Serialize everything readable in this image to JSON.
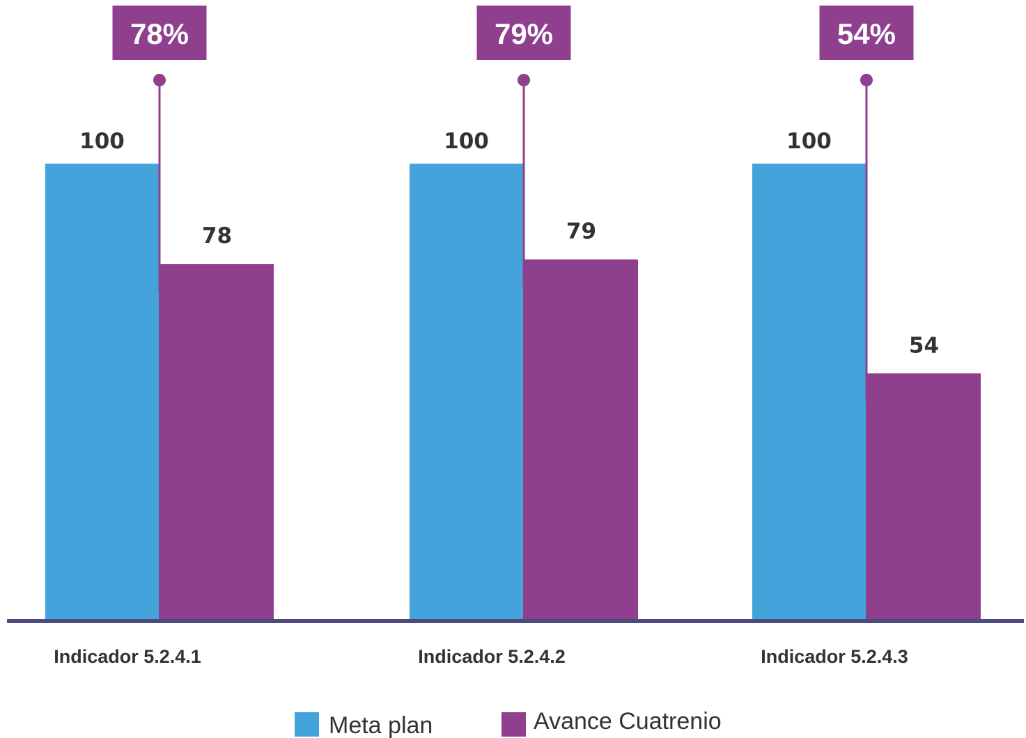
{
  "chart_data": {
    "type": "bar",
    "categories": [
      "Indicador 5.2.4.1",
      "Indicador 5.2.4.2",
      "Indicador 5.2.4.3"
    ],
    "series": [
      {
        "name": "Meta plan",
        "values": [
          100,
          100,
          100
        ],
        "color": "#45a3db"
      },
      {
        "name": "Avance Cuatrenio",
        "values": [
          78,
          79,
          54
        ],
        "color": "#8e3f8e"
      }
    ],
    "callouts": [
      "78%",
      "79%",
      "54%"
    ],
    "ylim": [
      0,
      100
    ],
    "grid": false,
    "legend_position": "bottom",
    "colors": {
      "axis": "#4b4b7d",
      "callout": "#8e3f8e"
    }
  }
}
